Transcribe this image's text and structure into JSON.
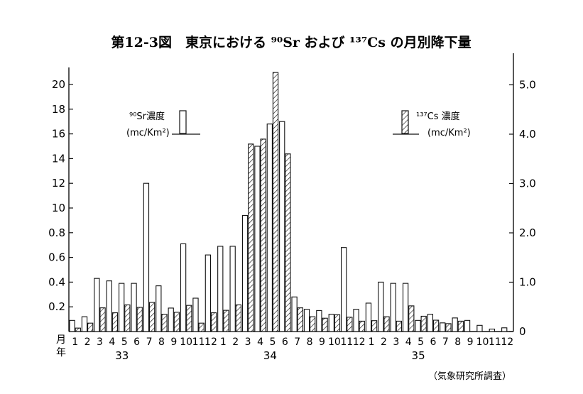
{
  "chart_data": {
    "type": "bar",
    "title": "第12-3図　東京における ⁹⁰Sr および ¹³⁷Cs の月別降下量",
    "corner_label_top": "月",
    "corner_label_bottom": "年",
    "years": [
      "33",
      "34",
      "35"
    ],
    "months": [
      "1",
      "2",
      "3",
      "4",
      "5",
      "6",
      "7",
      "8",
      "9",
      "10",
      "11",
      "12",
      "1",
      "2",
      "3",
      "4",
      "5",
      "6",
      "7",
      "8",
      "9",
      "10",
      "11",
      "12",
      "1",
      "2",
      "3",
      "4",
      "5",
      "6",
      "7",
      "8",
      "9",
      "10",
      "11",
      "12"
    ],
    "left_axis": {
      "label_line1": "⁹⁰Sr濃度",
      "label_line2": "(mc/Km²)",
      "ticks": [
        0.2,
        0.4,
        0.6,
        0.8,
        10,
        12,
        14,
        16,
        18,
        20
      ],
      "tick_labels": [
        "0.2",
        "0.4",
        "0.6",
        "0.8",
        "10",
        "12",
        "14",
        "16",
        "18",
        "20"
      ],
      "axis_scale": "two-segment: 0–1.0 linear for first half, 10–20 linear for second half; 0.8 and 10 one tick apart",
      "ylim": [
        0,
        21
      ]
    },
    "right_axis": {
      "label_line1": "¹³⁷Cs 濃度",
      "label_line2": "(mc/Km²)",
      "ticks": [
        0,
        1.0,
        2.0,
        3.0,
        4.0,
        5.0
      ],
      "tick_labels": [
        "0",
        "1.0",
        "2.0",
        "3.0",
        "4.0",
        "5.0"
      ],
      "ylim": [
        0,
        5.3
      ]
    },
    "series": [
      {
        "name": "⁹⁰Sr",
        "pattern": "open",
        "values": [
          0.09,
          0.12,
          0.43,
          0.41,
          0.39,
          0.39,
          12.0,
          0.37,
          0.19,
          0.71,
          0.27,
          0.62,
          0.69,
          0.69,
          0.94,
          15.0,
          16.8,
          17.0,
          0.28,
          0.18,
          0.17,
          0.14,
          0.68,
          0.18,
          0.23,
          0.4,
          0.39,
          0.39,
          0.09,
          0.14,
          0.07,
          0.11,
          0.09,
          0.05,
          0.02,
          0.03
        ]
      },
      {
        "name": "¹³⁷Cs",
        "pattern": "hatched",
        "values": [
          0.07,
          0.17,
          0.48,
          0.38,
          0.54,
          0.49,
          0.59,
          0.35,
          0.39,
          0.53,
          0.17,
          0.38,
          0.43,
          0.54,
          3.8,
          3.9,
          5.25,
          3.6,
          0.48,
          0.3,
          0.27,
          0.34,
          0.29,
          0.21,
          0.22,
          0.3,
          0.21,
          0.52,
          0.31,
          0.23,
          0.16,
          0.21,
          0,
          0,
          0,
          0
        ]
      }
    ]
  },
  "source": "（気象研究所調査）"
}
